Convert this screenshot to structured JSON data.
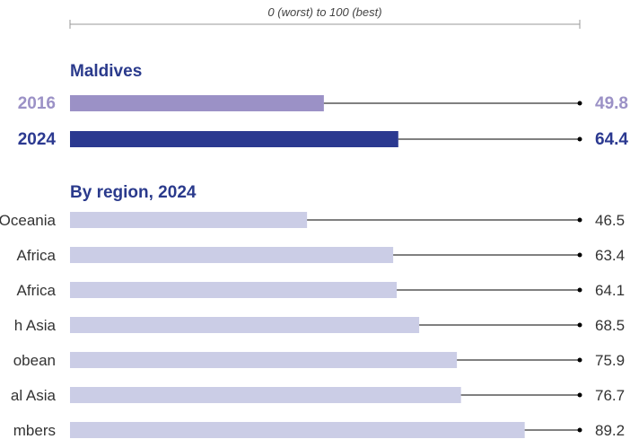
{
  "chart_data": {
    "type": "bar",
    "orientation": "horizontal",
    "scale_label": "0 (worst) to 100 (best)",
    "xlim": [
      0,
      100
    ],
    "colors": {
      "year_2016": "#9b91c6",
      "year_2024": "#2b3990",
      "region": "#cbcde6",
      "section_title": "#2a3a8c",
      "connector": "#000000"
    },
    "country": {
      "title": "Maldives",
      "bars": [
        {
          "label": "2016",
          "value": 49.8,
          "value_label": "49.8"
        },
        {
          "label": "2024",
          "value": 64.4,
          "value_label": "64.4"
        }
      ]
    },
    "regions": {
      "title": "By region, 2024",
      "bars": [
        {
          "label": "Oceania",
          "value": 46.5,
          "value_label": "46.5"
        },
        {
          "label": "Africa",
          "value": 63.4,
          "value_label": "63.4"
        },
        {
          "label": "Africa",
          "value": 64.1,
          "value_label": "64.1"
        },
        {
          "label": "h Asia",
          "value": 68.5,
          "value_label": "68.5"
        },
        {
          "label": "obean",
          "value": 75.9,
          "value_label": "75.9"
        },
        {
          "label": "al Asia",
          "value": 76.7,
          "value_label": "76.7"
        },
        {
          "label": "mbers",
          "value": 89.2,
          "value_label": "89.2"
        }
      ]
    }
  }
}
